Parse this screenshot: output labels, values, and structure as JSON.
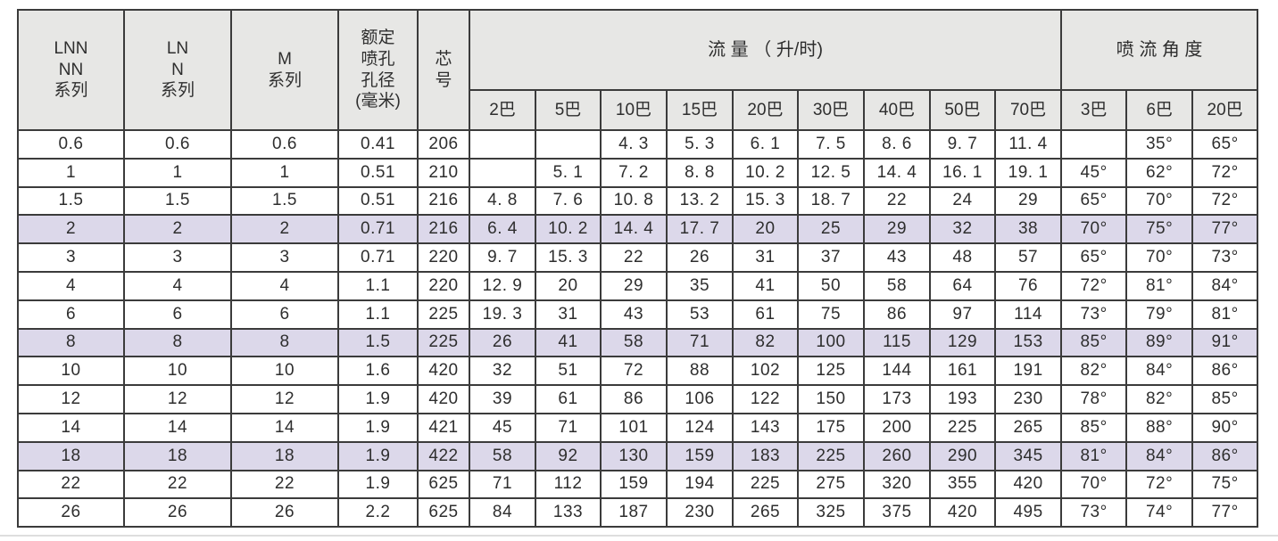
{
  "table": {
    "colors": {
      "header_bg": "#e7e7e5",
      "highlight_bg": "#dcd8ea",
      "border": "#3b3b3b"
    },
    "header": {
      "series_lnn": "LNN\nNN\n系列",
      "series_ln": "LN\nN\n系列",
      "series_m": "M\n系列",
      "orifice": "额定\n喷孔\n孔径\n(毫米)",
      "core": "芯\n号",
      "flow_group": "流 量 （ 升/时)",
      "angle_group": "喷 流 角 度",
      "flow_cols": [
        "2巴",
        "5巴",
        "10巴",
        "15巴",
        "20巴",
        "30巴",
        "40巴",
        "50巴",
        "70巴"
      ],
      "angle_cols": [
        "3巴",
        "6巴",
        "20巴"
      ]
    },
    "rows": [
      {
        "highlight": false,
        "cells": [
          "0.6",
          "0.6",
          "0.6",
          "0.41",
          "206",
          "",
          "",
          "4. 3",
          "5. 3",
          "6. 1",
          "7. 5",
          "8. 6",
          "9. 7",
          "11. 4",
          "",
          "35°",
          "65°"
        ]
      },
      {
        "highlight": false,
        "cells": [
          "1",
          "1",
          "1",
          "0.51",
          "210",
          "",
          "5. 1",
          "7. 2",
          "8. 8",
          "10. 2",
          "12. 5",
          "14. 4",
          "16. 1",
          "19. 1",
          "45°",
          "62°",
          "72°"
        ]
      },
      {
        "highlight": false,
        "cells": [
          "1.5",
          "1.5",
          "1.5",
          "0.51",
          "216",
          "4. 8",
          "7. 6",
          "10. 8",
          "13. 2",
          "15. 3",
          "18. 7",
          "22",
          "24",
          "29",
          "65°",
          "70°",
          "72°"
        ]
      },
      {
        "highlight": true,
        "cells": [
          "2",
          "2",
          "2",
          "0.71",
          "216",
          "6. 4",
          "10. 2",
          "14. 4",
          "17. 7",
          "20",
          "25",
          "29",
          "32",
          "38",
          "70°",
          "75°",
          "77°"
        ]
      },
      {
        "highlight": false,
        "cells": [
          "3",
          "3",
          "3",
          "0.71",
          "220",
          "9. 7",
          "15. 3",
          "22",
          "26",
          "31",
          "37",
          "43",
          "48",
          "57",
          "65°",
          "70°",
          "73°"
        ]
      },
      {
        "highlight": false,
        "cells": [
          "4",
          "4",
          "4",
          "1.1",
          "220",
          "12. 9",
          "20",
          "29",
          "35",
          "41",
          "50",
          "58",
          "64",
          "76",
          "72°",
          "81°",
          "84°"
        ]
      },
      {
        "highlight": false,
        "cells": [
          "6",
          "6",
          "6",
          "1.1",
          "225",
          "19. 3",
          "31",
          "43",
          "53",
          "61",
          "75",
          "86",
          "97",
          "114",
          "73°",
          "79°",
          "81°"
        ]
      },
      {
        "highlight": true,
        "cells": [
          "8",
          "8",
          "8",
          "1.5",
          "225",
          "26",
          "41",
          "58",
          "71",
          "82",
          "100",
          "115",
          "129",
          "153",
          "85°",
          "89°",
          "91°"
        ]
      },
      {
        "highlight": false,
        "cells": [
          "10",
          "10",
          "10",
          "1.6",
          "420",
          "32",
          "51",
          "72",
          "88",
          "102",
          "125",
          "144",
          "161",
          "191",
          "82°",
          "84°",
          "86°"
        ]
      },
      {
        "highlight": false,
        "cells": [
          "12",
          "12",
          "12",
          "1.9",
          "420",
          "39",
          "61",
          "86",
          "106",
          "122",
          "150",
          "173",
          "193",
          "230",
          "78°",
          "82°",
          "85°"
        ]
      },
      {
        "highlight": false,
        "cells": [
          "14",
          "14",
          "14",
          "1.9",
          "421",
          "45",
          "71",
          "101",
          "124",
          "143",
          "175",
          "200",
          "225",
          "265",
          "85°",
          "88°",
          "90°"
        ]
      },
      {
        "highlight": true,
        "cells": [
          "18",
          "18",
          "18",
          "1.9",
          "422",
          "58",
          "92",
          "130",
          "159",
          "183",
          "225",
          "260",
          "290",
          "345",
          "81°",
          "84°",
          "86°"
        ]
      },
      {
        "highlight": false,
        "cells": [
          "22",
          "22",
          "22",
          "1.9",
          "625",
          "71",
          "112",
          "159",
          "194",
          "225",
          "275",
          "320",
          "355",
          "420",
          "70°",
          "72°",
          "75°"
        ]
      },
      {
        "highlight": false,
        "cells": [
          "26",
          "26",
          "26",
          "2.2",
          "625",
          "84",
          "133",
          "187",
          "230",
          "265",
          "325",
          "375",
          "420",
          "495",
          "73°",
          "74°",
          "77°"
        ]
      }
    ]
  }
}
